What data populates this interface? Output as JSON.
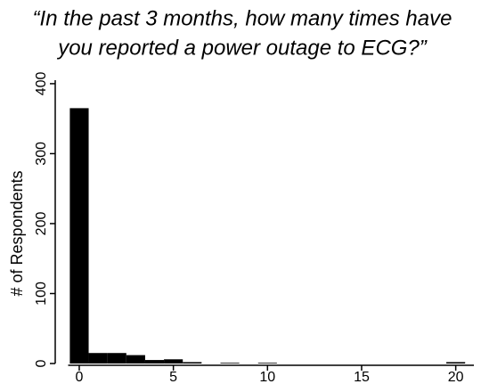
{
  "chart_data": {
    "type": "histogram",
    "title": [
      "“In the past 3 months, how many times have",
      "you reported a power outage to ECG?”"
    ],
    "ylabel": "# of Respondents",
    "bins": [
      -0.5,
      0.5,
      1.5,
      2.5,
      3.5,
      4.5,
      5.5,
      6.5,
      7.5,
      8.5,
      9.5,
      10.5,
      11.5,
      12.5,
      13.5,
      14.5,
      15.5,
      16.5,
      17.5,
      18.5,
      19.5,
      20.5
    ],
    "counts": [
      365,
      15,
      15,
      12,
      5,
      6,
      2,
      0,
      1,
      0,
      1,
      0,
      0,
      0,
      0,
      0,
      0,
      0,
      0,
      0,
      2
    ],
    "color": "#000000",
    "xlim": [
      -1.3,
      21.2
    ],
    "xticks": [
      0,
      5,
      10,
      15,
      20
    ],
    "ylim": [
      0,
      405
    ],
    "yticks": [
      0,
      100,
      200,
      300,
      400
    ]
  }
}
